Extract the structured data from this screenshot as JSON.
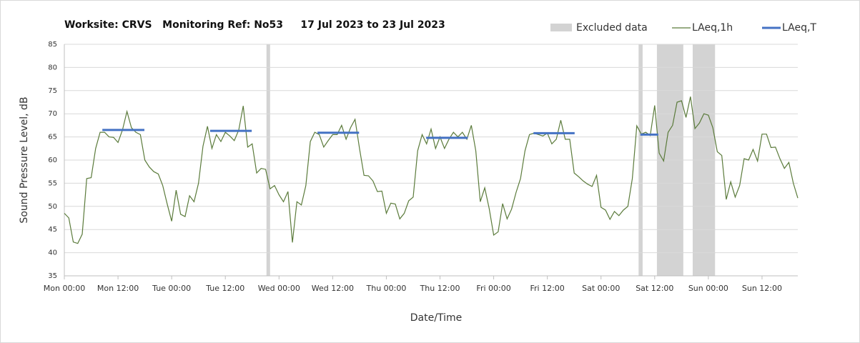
{
  "chart_data": {
    "type": "line",
    "title": "Worksite: CRVS   Monitoring Ref: No53     17 Jul 2023 to 23 Jul 2023",
    "x_label": "Date/Time",
    "y_label": "Sound Pressure Level, dB",
    "xlim": [
      0,
      164
    ],
    "xticks": [
      {
        "value": 0,
        "label": "Mon 00:00"
      },
      {
        "value": 12,
        "label": "Mon 12:00"
      },
      {
        "value": 24,
        "label": "Tue 00:00"
      },
      {
        "value": 36,
        "label": "Tue 12:00"
      },
      {
        "value": 48,
        "label": "Wed 00:00"
      },
      {
        "value": 60,
        "label": "Wed 12:00"
      },
      {
        "value": 72,
        "label": "Thu 00:00"
      },
      {
        "value": 84,
        "label": "Thu 12:00"
      },
      {
        "value": 96,
        "label": "Fri 00:00"
      },
      {
        "value": 108,
        "label": "Fri 12:00"
      },
      {
        "value": 120,
        "label": "Sat 00:00"
      },
      {
        "value": 132,
        "label": "Sat 12:00"
      },
      {
        "value": 144,
        "label": "Sun 00:00"
      },
      {
        "value": 156,
        "label": "Sun 12:00"
      }
    ],
    "ylim": [
      35,
      85
    ],
    "yticks": [
      35,
      40,
      45,
      50,
      55,
      60,
      65,
      70,
      75,
      80,
      85
    ],
    "grid": true,
    "legend": "top-right",
    "excluded": {
      "name": "Excluded data",
      "color": "#d3d3d3",
      "ranges": [
        {
          "start": 45.2,
          "end": 46.0
        },
        {
          "start": 128.4,
          "end": 129.3
        },
        {
          "start": 132.5,
          "end": 138.4
        },
        {
          "start": 140.5,
          "end": 145.5
        }
      ]
    },
    "series": [
      {
        "name": "LAeq,1h",
        "color": "#5b7b3b",
        "x": [
          0,
          1,
          2,
          3,
          4,
          5,
          6,
          7,
          8,
          9,
          10,
          11,
          12,
          13,
          14,
          15,
          16,
          17,
          18,
          19,
          20,
          21,
          22,
          23,
          24,
          25,
          26,
          27,
          28,
          29,
          30,
          31,
          32,
          33,
          34,
          35,
          36,
          37,
          38,
          39,
          40,
          41,
          42,
          43,
          44,
          45,
          46,
          47,
          48,
          49,
          50,
          51,
          52,
          53,
          54,
          55,
          56,
          57,
          58,
          59,
          60,
          61,
          62,
          63,
          64,
          65,
          66,
          67,
          68,
          69,
          70,
          71,
          72,
          73,
          74,
          75,
          76,
          77,
          78,
          79,
          80,
          81,
          82,
          83,
          84,
          85,
          86,
          87,
          88,
          89,
          90,
          91,
          92,
          93,
          94,
          95,
          96,
          97,
          98,
          99,
          100,
          101,
          102,
          103,
          104,
          105,
          106,
          107,
          108,
          109,
          110,
          111,
          112,
          113,
          114,
          115,
          116,
          117,
          118,
          119,
          120,
          121,
          122,
          123,
          124,
          125,
          126,
          127,
          128,
          129,
          130,
          131,
          132,
          133,
          134,
          135,
          136,
          137,
          138,
          139,
          140,
          141,
          142,
          143,
          144,
          145,
          146,
          147,
          148,
          149,
          150,
          151,
          152,
          153,
          154,
          155,
          156,
          157,
          158,
          159,
          160,
          161,
          162,
          163,
          164
        ],
        "values": [
          48.5,
          47.5,
          42.3,
          42,
          44,
          56,
          56.2,
          62.5,
          66,
          66,
          65,
          64.9,
          63.8,
          66.5,
          70.5,
          67,
          66,
          65.5,
          60,
          58.5,
          57.5,
          57,
          54.5,
          50.5,
          46.8,
          53.5,
          48.3,
          47.8,
          52.3,
          51,
          55,
          63,
          67.3,
          62.5,
          65.5,
          64,
          66,
          65.2,
          64.2,
          66.5,
          71.7,
          62.8,
          63.5,
          57.2,
          58.2,
          58,
          53.8,
          54.5,
          52.5,
          51,
          53.2,
          42.2,
          51,
          50.3,
          54.5,
          64,
          66,
          65.5,
          62.8,
          64.2,
          65.5,
          65.5,
          67.5,
          64.5,
          67,
          68.8,
          62.5,
          56.7,
          56.6,
          55.5,
          53.2,
          53.3,
          48.5,
          50.7,
          50.5,
          47.3,
          48.5,
          51.2,
          52,
          62,
          65.5,
          63.5,
          66.7,
          62.5,
          65,
          62.5,
          64.5,
          66,
          65,
          66,
          64.5,
          67.5,
          62,
          51,
          54,
          49.5,
          43.8,
          44.5,
          50.6,
          47.3,
          49.4,
          53,
          56,
          62,
          65.5,
          65.8,
          65.5,
          65.2,
          65.8,
          63.5,
          64.5,
          68.6,
          64.5,
          64.5,
          57.2,
          56.4,
          55.5,
          54.8,
          54.3,
          56.7,
          49.8,
          49.2,
          47.2,
          48.9,
          48,
          49.2,
          50,
          56,
          67.4,
          65.6,
          66,
          65.3,
          71.8,
          61.5,
          59.8,
          66,
          67.5,
          72.5,
          72.8,
          69.2,
          73.7,
          66.8,
          68,
          70,
          69.7,
          67,
          61.8,
          61,
          51.5,
          55.3,
          52,
          54.5,
          60.3,
          60,
          62.3,
          59.8,
          65.6,
          65.6,
          62.7,
          62.8,
          60.3,
          58.2,
          59.5,
          55,
          51.8
        ]
      },
      {
        "name": "LAeq,T",
        "color": "#4472c4",
        "segments": [
          {
            "start": 8.5,
            "end": 17.9,
            "value": 66.5
          },
          {
            "start": 32.6,
            "end": 41.9,
            "value": 66.3
          },
          {
            "start": 56.6,
            "end": 65.9,
            "value": 65.9
          },
          {
            "start": 80.9,
            "end": 90.2,
            "value": 64.8
          },
          {
            "start": 104.9,
            "end": 114.1,
            "value": 65.8
          },
          {
            "start": 128.8,
            "end": 132.8,
            "value": 65.5
          }
        ]
      }
    ]
  }
}
